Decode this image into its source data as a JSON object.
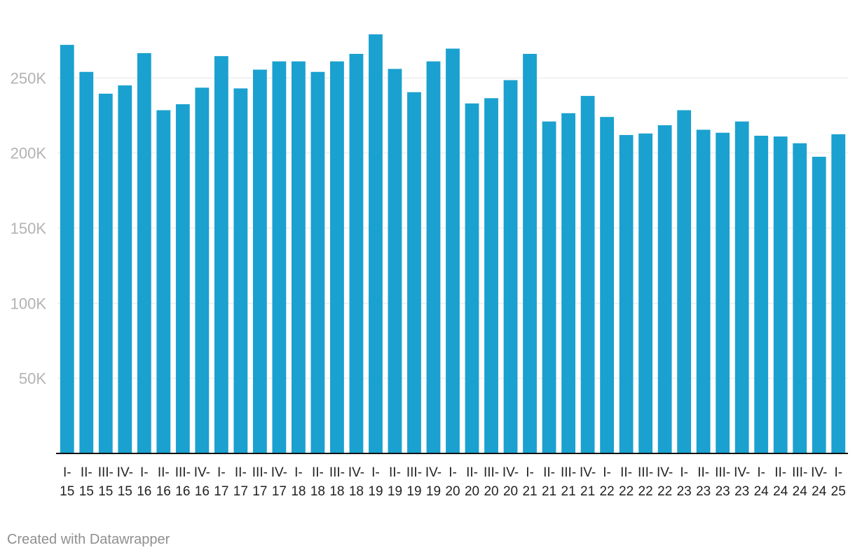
{
  "credit": "Created with Datawrapper",
  "colors": {
    "bar": "#1aa1cf",
    "grid": "#e6e6e6",
    "axis": "#111111"
  },
  "chart_data": {
    "type": "bar",
    "categories": [
      "I-15",
      "II-15",
      "III-15",
      "IV-15",
      "I-16",
      "II-16",
      "III-16",
      "IV-16",
      "I-17",
      "II-17",
      "III-17",
      "IV-17",
      "I-18",
      "II-18",
      "III-18",
      "IV-18",
      "I-19",
      "II-19",
      "III-19",
      "IV-19",
      "I-20",
      "II-20",
      "III-20",
      "IV-20",
      "I-21",
      "II-21",
      "III-21",
      "IV-21",
      "I-22",
      "II-22",
      "III-22",
      "IV-22",
      "I-23",
      "II-23",
      "III-23",
      "IV-23",
      "I-24",
      "II-24",
      "III-24",
      "IV-24",
      "I-25"
    ],
    "values": [
      272000,
      254000,
      239500,
      245000,
      266500,
      228500,
      232500,
      243500,
      264500,
      243000,
      255500,
      261000,
      261000,
      254000,
      261000,
      266000,
      279000,
      256000,
      240500,
      261000,
      269500,
      233000,
      236500,
      248500,
      266000,
      221000,
      226500,
      238000,
      224000,
      212000,
      213000,
      218500,
      228500,
      215500,
      213500,
      221000,
      211500,
      211000,
      206500,
      197500,
      212500
    ],
    "yticks": [
      50000,
      100000,
      150000,
      200000,
      250000
    ],
    "ytick_labels": [
      "50K",
      "100K",
      "150K",
      "200K",
      "250K"
    ],
    "ylim": [
      0,
      280000
    ],
    "grid": true,
    "legend": "none"
  }
}
